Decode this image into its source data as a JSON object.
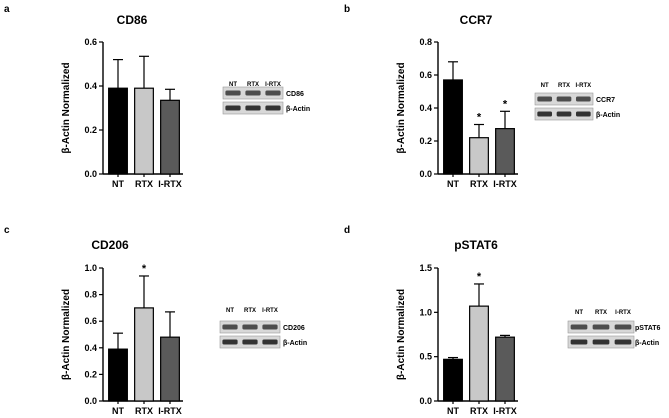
{
  "colors": {
    "bar_colors": [
      "#000000",
      "#c8c8c8",
      "#5a5a5a"
    ],
    "axis": "#000000",
    "blot_bg": "#d8d8d8",
    "band": "#2a2a2a"
  },
  "chart_data": [
    {
      "panel": "a",
      "type": "bar",
      "title": "CD86",
      "ylabel": "β-Actin Normalized",
      "categories": [
        "NT",
        "RTX",
        "I-RTX"
      ],
      "values": [
        0.39,
        0.39,
        0.335
      ],
      "errors": [
        0.13,
        0.145,
        0.05
      ],
      "significant": [
        false,
        false,
        false
      ],
      "ylim": [
        0,
        0.6
      ],
      "yticks": [
        "0.0",
        "0.2",
        "0.4",
        "0.6"
      ],
      "blot": {
        "lanes": [
          "NT",
          "RTX",
          "I-RTX"
        ],
        "rows": [
          "CD86",
          "β-Actin"
        ]
      }
    },
    {
      "panel": "b",
      "type": "bar",
      "title": "CCR7",
      "ylabel": "β-Actin Normalized",
      "categories": [
        "NT",
        "RTX",
        "I-RTX"
      ],
      "values": [
        0.57,
        0.22,
        0.275
      ],
      "errors": [
        0.11,
        0.08,
        0.105
      ],
      "significant": [
        false,
        true,
        true
      ],
      "ylim": [
        0,
        0.8
      ],
      "yticks": [
        "0.0",
        "0.2",
        "0.4",
        "0.6",
        "0.8"
      ],
      "blot": {
        "lanes": [
          "NT",
          "RTX",
          "I-RTX"
        ],
        "rows": [
          "CCR7",
          "β-Actin"
        ]
      }
    },
    {
      "panel": "c",
      "type": "bar",
      "title": "CD206",
      "ylabel": "β-Actin Normalized",
      "categories": [
        "NT",
        "RTX",
        "I-RTX"
      ],
      "values": [
        0.39,
        0.7,
        0.48
      ],
      "errors": [
        0.12,
        0.24,
        0.19
      ],
      "significant": [
        false,
        true,
        false
      ],
      "ylim": [
        0,
        1.0
      ],
      "yticks": [
        "0.0",
        "0.2",
        "0.4",
        "0.6",
        "0.8",
        "1.0"
      ],
      "blot": {
        "lanes": [
          "NT",
          "RTX",
          "I-RTX"
        ],
        "rows": [
          "CD206",
          "β-Actin"
        ]
      }
    },
    {
      "panel": "d",
      "type": "bar",
      "title": "pSTAT6",
      "ylabel": "β-Actin Normalized",
      "categories": [
        "NT",
        "RTX",
        "I-RTX"
      ],
      "values": [
        0.47,
        1.07,
        0.72
      ],
      "errors": [
        0.02,
        0.25,
        0.02
      ],
      "significant": [
        false,
        true,
        false
      ],
      "ylim": [
        0,
        1.5
      ],
      "yticks": [
        "0.0",
        "0.5",
        "1.0",
        "1.5"
      ],
      "blot": {
        "lanes": [
          "NT",
          "RTX",
          "I-RTX"
        ],
        "rows": [
          "pSTAT6",
          "β-Actin"
        ]
      }
    }
  ]
}
